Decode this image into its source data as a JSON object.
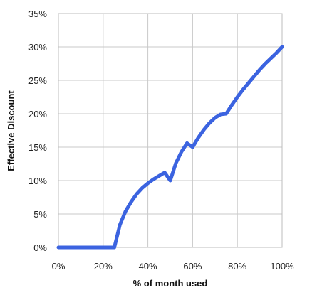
{
  "colors": {
    "series": "#3b63e0",
    "grid": "#c8c8c8"
  },
  "chart_data": {
    "type": "line",
    "title": "",
    "xlabel": "% of month used",
    "ylabel": "Effective Discount",
    "xlim": [
      0,
      100
    ],
    "ylim": [
      0,
      35
    ],
    "x_ticks": [
      0,
      20,
      40,
      60,
      80,
      100
    ],
    "x_tick_labels": [
      "0%",
      "20%",
      "40%",
      "60%",
      "80%",
      "100%"
    ],
    "y_ticks": [
      0,
      5,
      10,
      15,
      20,
      25,
      30,
      35
    ],
    "y_tick_labels": [
      "0%",
      "5%",
      "10%",
      "15%",
      "20%",
      "25%",
      "30%",
      "35%"
    ],
    "grid": true,
    "legend": "none",
    "series": [
      {
        "x": [
          0,
          25,
          27.5,
          30,
          32.5,
          35,
          37.5,
          40,
          42.5,
          45,
          47.5,
          50,
          52.5,
          55,
          57.5,
          60,
          62.5,
          65,
          67.5,
          70,
          72.5,
          75,
          77.5,
          80,
          82.5,
          85,
          87.5,
          90,
          92.5,
          95,
          97.5,
          100
        ],
        "y": [
          0,
          0,
          3.4,
          5.4,
          6.8,
          8.0,
          8.9,
          9.6,
          10.2,
          10.7,
          11.2,
          10.0,
          12.6,
          14.3,
          15.6,
          15.0,
          16.4,
          17.6,
          18.6,
          19.4,
          19.9,
          20.0,
          21.3,
          22.5,
          23.6,
          24.6,
          25.6,
          26.6,
          27.5,
          28.3,
          29.1,
          30.0
        ]
      }
    ]
  }
}
